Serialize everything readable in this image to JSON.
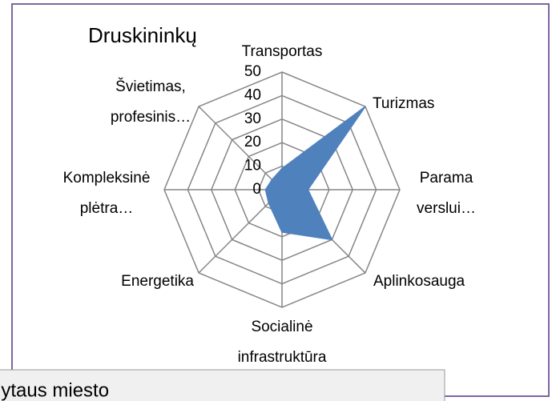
{
  "chart_data": {
    "type": "radar",
    "title": "Druskininkų",
    "categories": [
      "Transportas",
      "Turizmas",
      "Parama verslui…",
      "Aplinkosauga",
      "Socialinė infrastruktūra",
      "Energetika",
      "Kompleksinė plėtra…",
      "Švietimas, profesinis…"
    ],
    "series": [
      {
        "name": "Druskininkų",
        "color": "#4f81bd",
        "values": [
          9,
          50,
          11,
          30,
          18,
          8,
          7,
          6
        ]
      }
    ],
    "ylim": [
      0,
      50
    ],
    "yticks": [
      0,
      10,
      20,
      30,
      40,
      50
    ],
    "grid": true
  },
  "tooltip": {
    "text": "lytaus miesto"
  }
}
